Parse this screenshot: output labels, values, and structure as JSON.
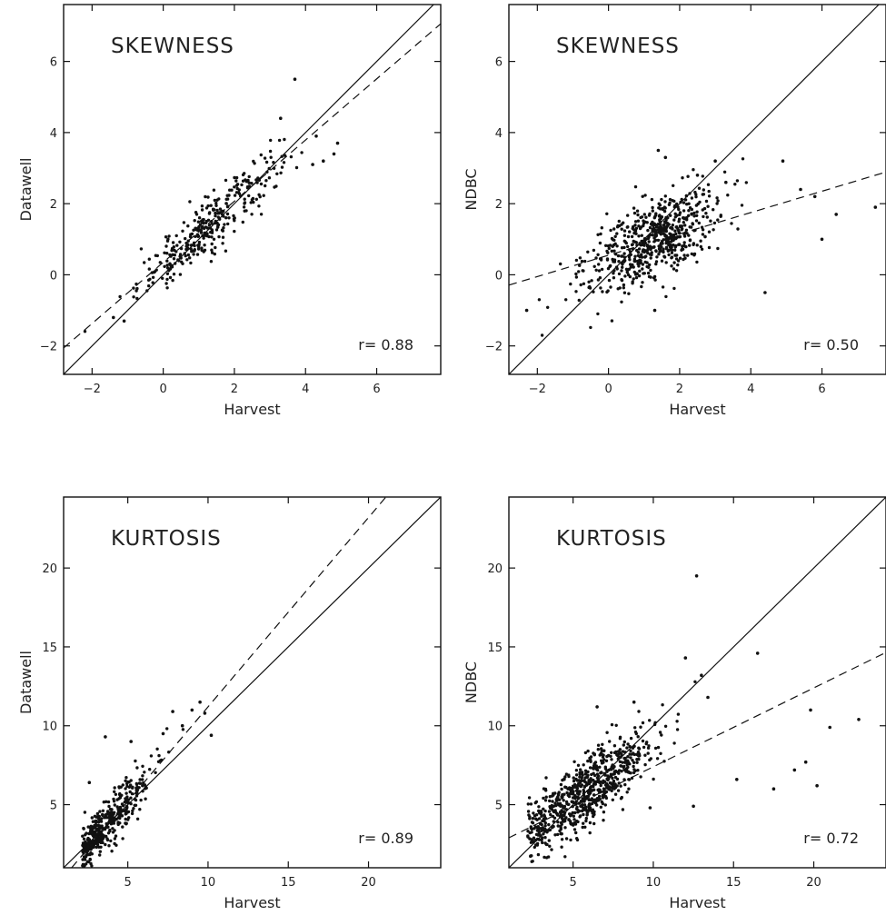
{
  "chart_data": [
    {
      "type": "scatter",
      "title": "SKEWNESS",
      "xlabel": "Harvest",
      "ylabel": "Datawell",
      "xlim": [
        -2.8,
        7.8
      ],
      "ylim": [
        -2.8,
        7.6
      ],
      "xticks": [
        -2,
        0,
        2,
        4,
        6
      ],
      "yticks": [
        -2,
        0,
        2,
        4,
        6
      ],
      "xtick_labels": [
        "−2",
        "0",
        "2",
        "4",
        "6"
      ],
      "ytick_labels": [
        "−2",
        "0",
        "2",
        "4",
        "6"
      ],
      "r_prefix": "r=",
      "r_value": "0.88",
      "grid": false,
      "reference_line": {
        "style": "solid",
        "slope": 1,
        "intercept": 0
      },
      "fit_line": {
        "style": "dashed",
        "slope": 0.86,
        "intercept": 0.35
      },
      "points": {
        "count": 320,
        "x_center": 1.3,
        "x_spread": 1.0,
        "slope": 0.9,
        "intercept": 0.25,
        "noise": 0.38
      },
      "outliers": [
        [
          3.7,
          5.5
        ],
        [
          3.3,
          4.4
        ],
        [
          4.5,
          3.2
        ],
        [
          4.8,
          3.4
        ],
        [
          4.9,
          3.7
        ],
        [
          4.3,
          3.9
        ],
        [
          -1.4,
          -1.2
        ],
        [
          -1.1,
          -1.3
        ],
        [
          4.2,
          3.1
        ]
      ]
    },
    {
      "type": "scatter",
      "title": "SKEWNESS",
      "xlabel": "Harvest",
      "ylabel": "NDBC",
      "xlim": [
        -2.8,
        7.8
      ],
      "ylim": [
        -2.8,
        7.6
      ],
      "xticks": [
        -2,
        0,
        2,
        4,
        6
      ],
      "yticks": [
        -2,
        0,
        2,
        4,
        6
      ],
      "xtick_labels": [
        "−2",
        "0",
        "2",
        "4",
        "6"
      ],
      "ytick_labels": [
        "−2",
        "0",
        "2",
        "4",
        "6"
      ],
      "r_prefix": "r=",
      "r_value": "0.50",
      "grid": false,
      "reference_line": {
        "style": "solid",
        "slope": 1,
        "intercept": 0
      },
      "fit_line": {
        "style": "dashed",
        "slope": 0.3,
        "intercept": 0.55
      },
      "points": {
        "count": 620,
        "x_center": 1.2,
        "x_spread": 0.95,
        "slope": 0.45,
        "intercept": 0.4,
        "noise": 0.55
      },
      "outliers": [
        [
          1.4,
          3.5
        ],
        [
          1.6,
          3.3
        ],
        [
          3.0,
          3.2
        ],
        [
          3.3,
          2.6
        ],
        [
          4.9,
          3.2
        ],
        [
          5.4,
          2.4
        ],
        [
          6.4,
          1.7
        ],
        [
          7.5,
          1.9
        ],
        [
          6.0,
          1.0
        ],
        [
          5.8,
          2.2
        ],
        [
          4.4,
          -0.5
        ],
        [
          1.3,
          -1.0
        ],
        [
          -2.3,
          -1.0
        ],
        [
          2.5,
          2.8
        ]
      ]
    },
    {
      "type": "scatter",
      "title": "KURTOSIS",
      "xlabel": "Harvest",
      "ylabel": "Datawell",
      "xlim": [
        1,
        24.5
      ],
      "ylim": [
        1,
        24.5
      ],
      "xticks": [
        5,
        10,
        15,
        20
      ],
      "yticks": [
        5,
        10,
        15,
        20
      ],
      "xtick_labels": [
        "5",
        "10",
        "15",
        "20"
      ],
      "ytick_labels": [
        "5",
        "10",
        "15",
        "20"
      ],
      "r_prefix": "r=",
      "r_value": "0.89",
      "grid": false,
      "reference_line": {
        "style": "solid",
        "slope": 1,
        "intercept": 0
      },
      "fit_line": {
        "style": "dashed",
        "slope": 1.2,
        "intercept": -0.8
      },
      "points": {
        "count": 420,
        "x_center": 3.6,
        "x_spread": 1.5,
        "slope": 1.15,
        "intercept": -0.4,
        "noise": 0.75
      },
      "outliers": [
        [
          9.5,
          11.5
        ],
        [
          9.8,
          10.8
        ],
        [
          7.8,
          10.9
        ],
        [
          9.0,
          11.0
        ],
        [
          7.2,
          9.5
        ],
        [
          3.6,
          9.3
        ],
        [
          5.2,
          9.0
        ],
        [
          10.2,
          9.4
        ],
        [
          2.6,
          6.4
        ],
        [
          8.4,
          10.0
        ]
      ]
    },
    {
      "type": "scatter",
      "title": "KURTOSIS",
      "xlabel": "Harvest",
      "ylabel": "NDBC",
      "xlim": [
        1,
        24.5
      ],
      "ylim": [
        1,
        24.5
      ],
      "xticks": [
        5,
        10,
        15,
        20
      ],
      "yticks": [
        5,
        10,
        15,
        20
      ],
      "xtick_labels": [
        "5",
        "10",
        "15",
        "20"
      ],
      "ytick_labels": [
        "5",
        "10",
        "15",
        "20"
      ],
      "r_prefix": "r=",
      "r_value": "0.72",
      "grid": false,
      "reference_line": {
        "style": "solid",
        "slope": 1,
        "intercept": 0
      },
      "fit_line": {
        "style": "dashed",
        "slope": 0.5,
        "intercept": 2.4
      },
      "points": {
        "count": 720,
        "x_center": 5.6,
        "x_spread": 2.2,
        "slope": 0.78,
        "intercept": 1.2,
        "noise": 1.1
      },
      "outliers": [
        [
          12.7,
          19.5
        ],
        [
          12.0,
          14.3
        ],
        [
          16.5,
          14.6
        ],
        [
          13.0,
          13.2
        ],
        [
          19.8,
          11.0
        ],
        [
          21.0,
          9.9
        ],
        [
          22.8,
          10.4
        ],
        [
          19.5,
          7.7
        ],
        [
          17.5,
          6.0
        ],
        [
          20.2,
          6.2
        ],
        [
          15.2,
          6.6
        ],
        [
          12.5,
          4.9
        ],
        [
          9.8,
          4.8
        ],
        [
          13.4,
          11.8
        ],
        [
          18.8,
          7.2
        ],
        [
          6.5,
          11.2
        ],
        [
          8.8,
          11.5
        ]
      ]
    }
  ]
}
